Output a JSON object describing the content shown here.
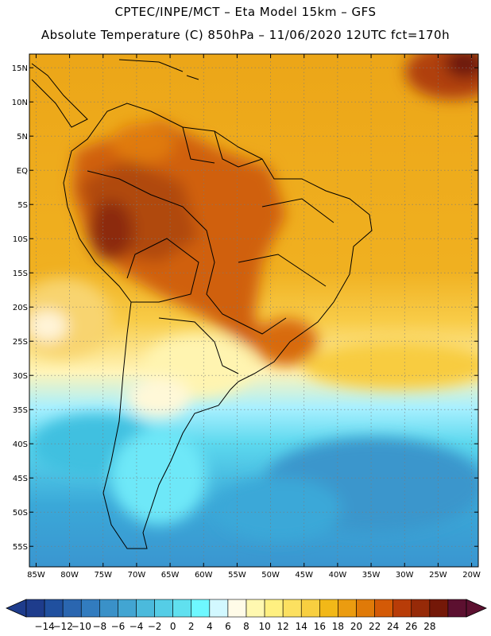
{
  "header": {
    "line1": "CPTEC/INPE/MCT –  Eta Model 15km – GFS",
    "line2": "Absolute Temperature (C) 850hPa – 11/06/2020 12UTC fct=170h"
  },
  "map": {
    "lon_range": [
      -86,
      -19
    ],
    "lat_range": [
      -58,
      17
    ],
    "lat_ticks": [
      {
        "value": 15,
        "label": "15N"
      },
      {
        "value": 10,
        "label": "10N"
      },
      {
        "value": 5,
        "label": "5N"
      },
      {
        "value": 0,
        "label": "EQ"
      },
      {
        "value": -5,
        "label": "5S"
      },
      {
        "value": -10,
        "label": "10S"
      },
      {
        "value": -15,
        "label": "15S"
      },
      {
        "value": -20,
        "label": "20S"
      },
      {
        "value": -25,
        "label": "25S"
      },
      {
        "value": -30,
        "label": "30S"
      },
      {
        "value": -35,
        "label": "35S"
      },
      {
        "value": -40,
        "label": "40S"
      },
      {
        "value": -45,
        "label": "45S"
      },
      {
        "value": -50,
        "label": "50S"
      },
      {
        "value": -55,
        "label": "55S"
      }
    ],
    "lon_ticks": [
      {
        "value": -85,
        "label": "85W"
      },
      {
        "value": -80,
        "label": "80W"
      },
      {
        "value": -75,
        "label": "75W"
      },
      {
        "value": -70,
        "label": "70W"
      },
      {
        "value": -65,
        "label": "65W"
      },
      {
        "value": -60,
        "label": "60W"
      },
      {
        "value": -55,
        "label": "55W"
      },
      {
        "value": -50,
        "label": "50W"
      },
      {
        "value": -45,
        "label": "45W"
      },
      {
        "value": -40,
        "label": "40W"
      },
      {
        "value": -35,
        "label": "35W"
      },
      {
        "value": -30,
        "label": "30W"
      },
      {
        "value": -25,
        "label": "25W"
      },
      {
        "value": -20,
        "label": "20W"
      }
    ]
  },
  "colorbar": {
    "labels": [
      "-14",
      "-12",
      "-10",
      "-8",
      "-6",
      "-4",
      "-2",
      "0",
      "2",
      "4",
      "6",
      "8",
      "10",
      "12",
      "14",
      "16",
      "18",
      "20",
      "22",
      "24",
      "26",
      "28"
    ],
    "colors": [
      "#1e3c8c",
      "#20509f",
      "#2a66b0",
      "#327cbf",
      "#3a91c8",
      "#42a5d2",
      "#4bbadc",
      "#55cde6",
      "#60e0ef",
      "#6ef8ff",
      "#d2f8ff",
      "#fffbe8",
      "#fff8b0",
      "#fff080",
      "#fce060",
      "#f8cf40",
      "#f2b818",
      "#eb9c10",
      "#e07a08",
      "#d45a06",
      "#b83c08",
      "#962a08",
      "#741808",
      "#5c1030"
    ]
  }
}
